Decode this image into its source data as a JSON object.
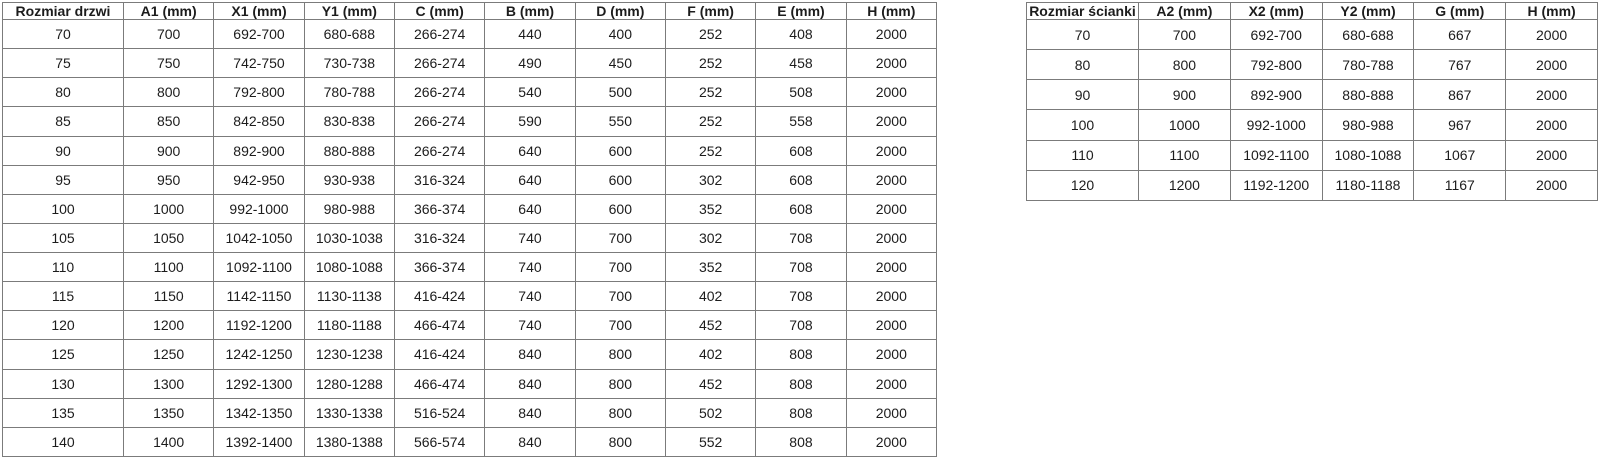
{
  "page": {
    "background": "#ffffff"
  },
  "colors": {
    "border_inner": "#7b7b7b",
    "border_outer": "#565656",
    "text": "#1c1c1c",
    "header_text": "#000000"
  },
  "door_table": {
    "title": "Rozmiar drzwi",
    "headers": [
      "Rozmiar drzwi",
      "A1 (mm)",
      "X1 (mm)",
      "Y1 (mm)",
      "C (mm)",
      "B (mm)",
      "D (mm)",
      "F (mm)",
      "E (mm)",
      "H (mm)"
    ],
    "rows": [
      [
        "70",
        "700",
        "692-700",
        "680-688",
        "266-274",
        "440",
        "400",
        "252",
        "408",
        "2000"
      ],
      [
        "75",
        "750",
        "742-750",
        "730-738",
        "266-274",
        "490",
        "450",
        "252",
        "458",
        "2000"
      ],
      [
        "80",
        "800",
        "792-800",
        "780-788",
        "266-274",
        "540",
        "500",
        "252",
        "508",
        "2000"
      ],
      [
        "85",
        "850",
        "842-850",
        "830-838",
        "266-274",
        "590",
        "550",
        "252",
        "558",
        "2000"
      ],
      [
        "90",
        "900",
        "892-900",
        "880-888",
        "266-274",
        "640",
        "600",
        "252",
        "608",
        "2000"
      ],
      [
        "95",
        "950",
        "942-950",
        "930-938",
        "316-324",
        "640",
        "600",
        "302",
        "608",
        "2000"
      ],
      [
        "100",
        "1000",
        "992-1000",
        "980-988",
        "366-374",
        "640",
        "600",
        "352",
        "608",
        "2000"
      ],
      [
        "105",
        "1050",
        "1042-1050",
        "1030-1038",
        "316-324",
        "740",
        "700",
        "302",
        "708",
        "2000"
      ],
      [
        "110",
        "1100",
        "1092-1100",
        "1080-1088",
        "366-374",
        "740",
        "700",
        "352",
        "708",
        "2000"
      ],
      [
        "115",
        "1150",
        "1142-1150",
        "1130-1138",
        "416-424",
        "740",
        "700",
        "402",
        "708",
        "2000"
      ],
      [
        "120",
        "1200",
        "1192-1200",
        "1180-1188",
        "466-474",
        "740",
        "700",
        "452",
        "708",
        "2000"
      ],
      [
        "125",
        "1250",
        "1242-1250",
        "1230-1238",
        "416-424",
        "840",
        "800",
        "402",
        "808",
        "2000"
      ],
      [
        "130",
        "1300",
        "1292-1300",
        "1280-1288",
        "466-474",
        "840",
        "800",
        "452",
        "808",
        "2000"
      ],
      [
        "135",
        "1350",
        "1342-1350",
        "1330-1338",
        "516-524",
        "840",
        "800",
        "502",
        "808",
        "2000"
      ],
      [
        "140",
        "1400",
        "1392-1400",
        "1380-1388",
        "566-574",
        "840",
        "800",
        "552",
        "808",
        "2000"
      ]
    ]
  },
  "wall_table": {
    "title": "Rozmiar ścianki",
    "headers": [
      "Rozmiar ścianki",
      "A2 (mm)",
      "X2 (mm)",
      "Y2 (mm)",
      "G (mm)",
      "H (mm)"
    ],
    "rows": [
      [
        "70",
        "700",
        "692-700",
        "680-688",
        "667",
        "2000"
      ],
      [
        "80",
        "800",
        "792-800",
        "780-788",
        "767",
        "2000"
      ],
      [
        "90",
        "900",
        "892-900",
        "880-888",
        "867",
        "2000"
      ],
      [
        "100",
        "1000",
        "992-1000",
        "980-988",
        "967",
        "2000"
      ],
      [
        "110",
        "1100",
        "1092-1100",
        "1080-1088",
        "1067",
        "2000"
      ],
      [
        "120",
        "1200",
        "1192-1200",
        "1180-1188",
        "1167",
        "2000"
      ]
    ]
  }
}
